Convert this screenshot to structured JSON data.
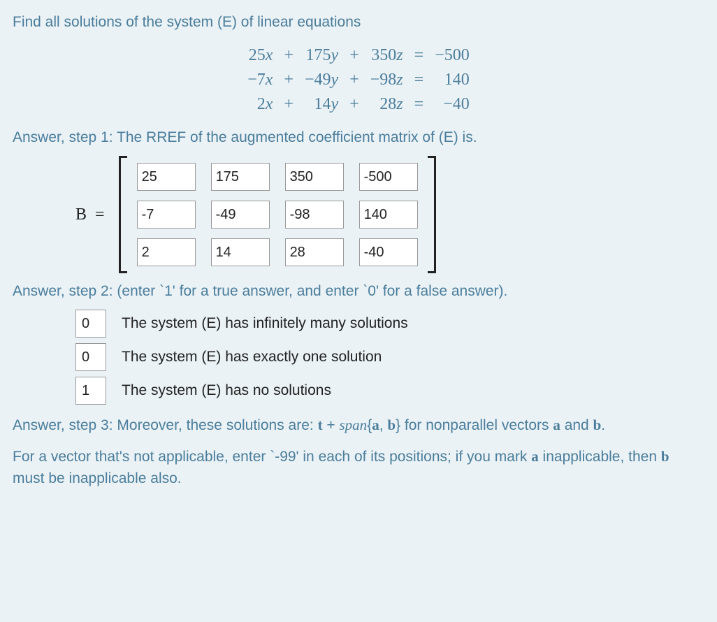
{
  "colors": {
    "background": "#eaf2f6",
    "heading_text": "#4b7d9b",
    "equation_text": "#4b7d9b",
    "body_text": "#222222",
    "input_border": "#999999",
    "input_bg": "#ffffff",
    "bracket": "#222222"
  },
  "typography": {
    "body_family": "Arial",
    "math_family": "Times New Roman",
    "base_size_pt": 16,
    "math_size_pt": 18
  },
  "prompt": "Find all solutions of the system (E) of linear equations",
  "equations": {
    "rows": [
      {
        "ax": "25",
        "xv": "x",
        "op1": "+",
        "ay": "175",
        "yv": "y",
        "op2": "+",
        "az": "350",
        "zv": "z",
        "eq": "=",
        "rhs": "−500"
      },
      {
        "ax": "−7",
        "xv": "x",
        "op1": "+",
        "ay": "−49",
        "yv": "y",
        "op2": "+",
        "az": "−98",
        "zv": "z",
        "eq": "=",
        "rhs": "140"
      },
      {
        "ax": "2",
        "xv": "x",
        "op1": "+",
        "ay": "14",
        "yv": "y",
        "op2": "+",
        "az": "28",
        "zv": "z",
        "eq": "=",
        "rhs": "−40"
      }
    ]
  },
  "step1_label": "Answer, step 1: The RREF of the augmented coefficient matrix of (E) is.",
  "matrix": {
    "label_left": "B",
    "label_eq": "=",
    "rows": 3,
    "cols": 4,
    "values": [
      [
        "25",
        "175",
        "350",
        "-500"
      ],
      [
        "-7",
        "-49",
        "-98",
        "140"
      ],
      [
        "2",
        "14",
        "28",
        "-40"
      ]
    ]
  },
  "step2_label": "Answer, step 2: (enter `1' for a true answer, and enter `0' for a false answer).",
  "tf": [
    {
      "value": "0",
      "text": "The system (E) has infinitely many solutions"
    },
    {
      "value": "0",
      "text": "The system (E) has exactly one solution"
    },
    {
      "value": "1",
      "text": "The system (E) has no solutions"
    }
  ],
  "step3": {
    "prefix": "Answer, step 3: Moreover, these solutions are: ",
    "t": "t",
    "plus": " + ",
    "span": "span",
    "brace_open": "{",
    "a": "a",
    "comma": ", ",
    "b": "b",
    "brace_close": "}",
    "suffix1": " for nonparallel vectors ",
    "a2": "a",
    "and": " and ",
    "b2": "b",
    "period": "."
  },
  "note": {
    "prefix": "For a vector that's not applicable, enter `-99' in each of its positions; if you mark ",
    "a": "a",
    "mid": " inapplicable, then ",
    "b": "b",
    "suffix": " must be inapplicable also."
  }
}
